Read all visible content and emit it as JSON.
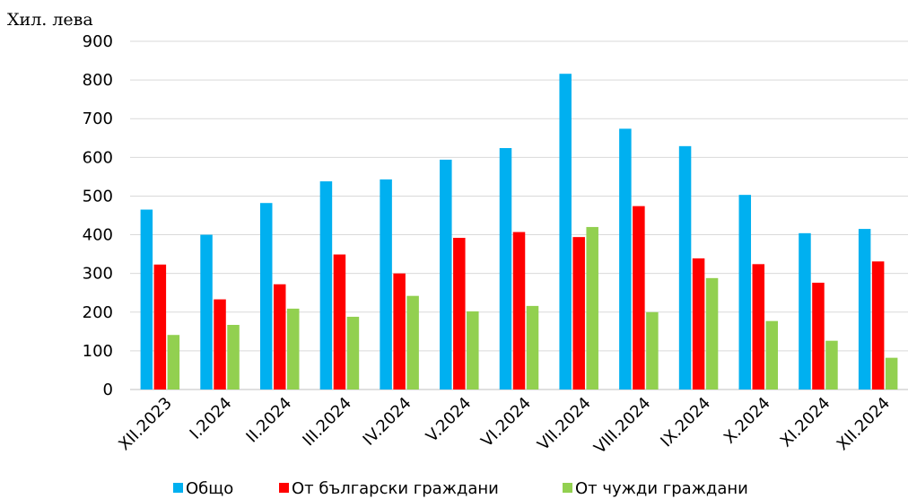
{
  "chart_data": {
    "type": "bar",
    "ylabel": "Хил. лева",
    "ylim": [
      0,
      900
    ],
    "yticks": [
      0,
      100,
      200,
      300,
      400,
      500,
      600,
      700,
      800,
      900
    ],
    "grid": true,
    "legend_position": "bottom",
    "categories": [
      "XII.2023",
      "I.2024",
      "II.2024",
      "III.2024",
      "IV.2024",
      "V.2024",
      "VI.2024",
      "VII.2024",
      "VIII.2024",
      "IX.2024",
      "X.2024",
      "XI.2024",
      "XII.2024"
    ],
    "series": [
      {
        "name": "Общо",
        "color": "#00b0f0",
        "values": [
          465,
          400,
          482,
          538,
          543,
          594,
          624,
          816,
          674,
          629,
          503,
          404,
          415
        ]
      },
      {
        "name": "От български граждани",
        "color": "#ff0000",
        "values": [
          323,
          233,
          272,
          349,
          300,
          392,
          407,
          394,
          474,
          339,
          324,
          276,
          331
        ]
      },
      {
        "name": "От чужди граждани",
        "color": "#92d050",
        "values": [
          141,
          167,
          209,
          188,
          242,
          202,
          216,
          420,
          200,
          288,
          177,
          126,
          82
        ]
      }
    ]
  }
}
